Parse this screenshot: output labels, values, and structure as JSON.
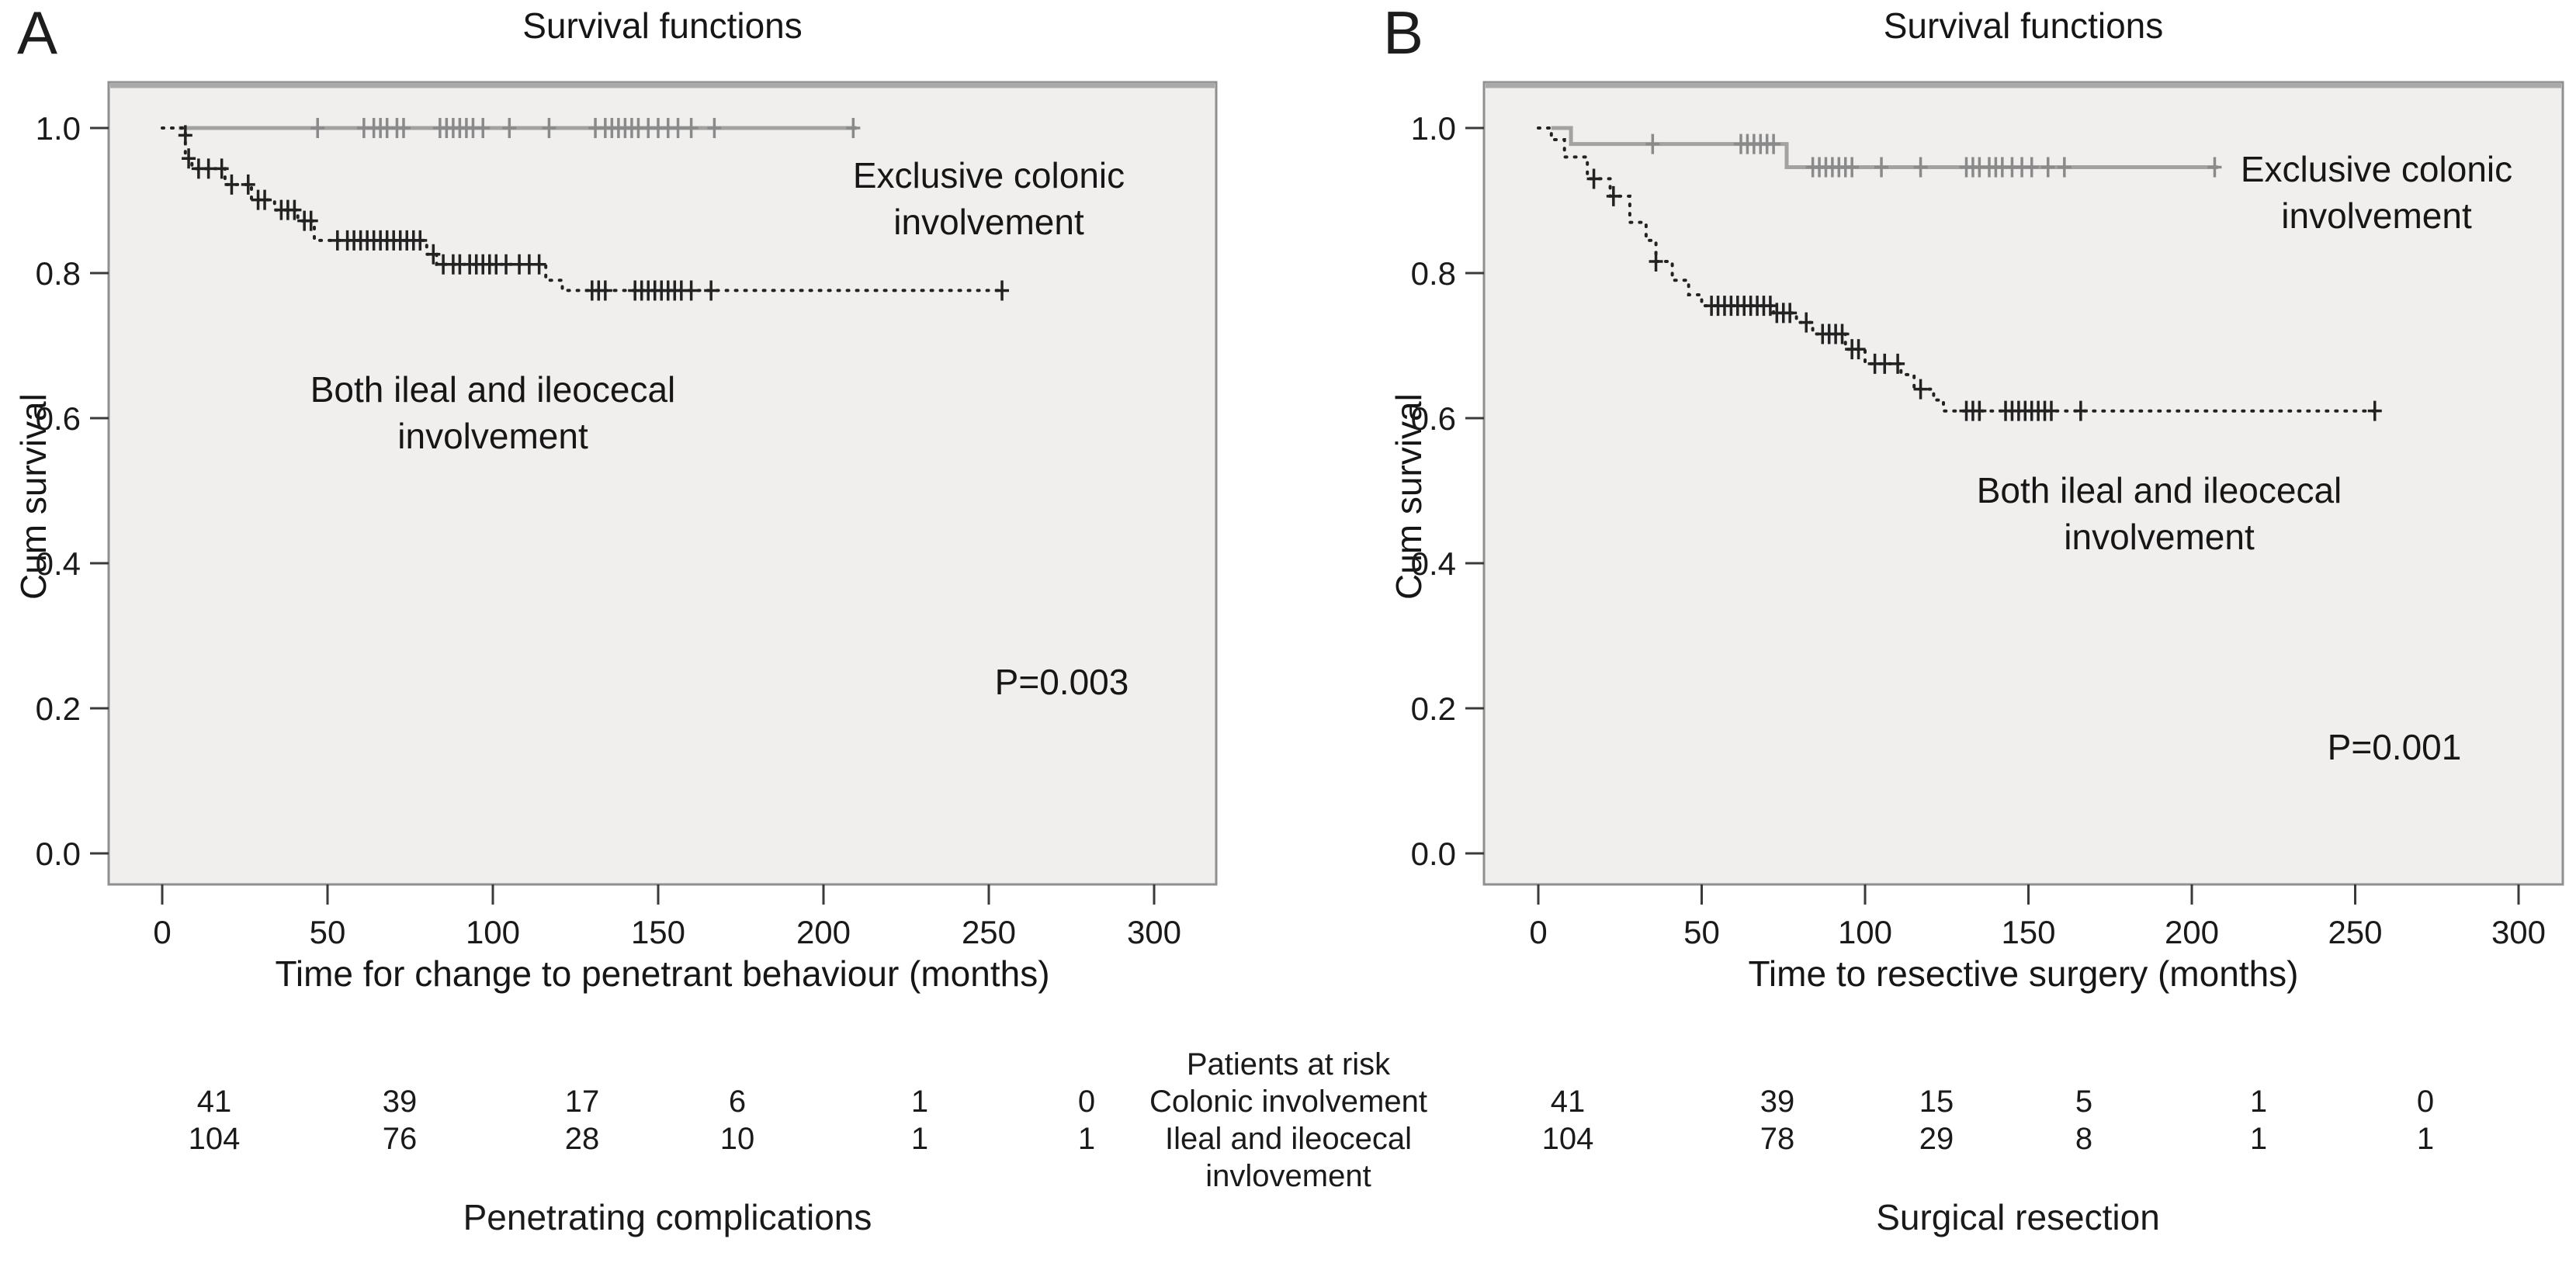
{
  "colors": {
    "colonic": "#a2a2a2",
    "colonic_censor": "#8a8a8a",
    "ileal": "#222222",
    "plot_bg": "#f0efee",
    "plot_border": "#8f8f8f",
    "plot_top_shade": "#a9a9a9",
    "tick": "#3a3a3a",
    "text": "#1a1a1a"
  },
  "risk_block": {
    "header": "Patients at risk",
    "row1_label": "Colonic involvement",
    "row2_label_line1": "Ileal and ileocecal",
    "row2_label_line2": "invlovement"
  },
  "chart_data": [
    {
      "id": "A",
      "panel_letter": "A",
      "type": "line",
      "subtype": "kaplan-meier-step",
      "title": "Survival functions",
      "xlabel": "Time for change to penetrant behaviour (months)",
      "ylabel": "Cum survival",
      "xticks": [
        0,
        50,
        100,
        150,
        200,
        250,
        300
      ],
      "yticks": [
        0.0,
        0.2,
        0.4,
        0.6,
        0.8,
        1.0
      ],
      "xlim": [
        -16,
        320
      ],
      "ylim": [
        -0.06,
        1.06
      ],
      "grid": false,
      "pvalue": "P=0.003",
      "caption": "Penetrating complications",
      "risk_rows": [
        [
          41,
          39,
          17,
          6,
          1,
          0
        ],
        [
          104,
          76,
          28,
          10,
          1,
          1
        ]
      ],
      "series": [
        {
          "name": "Exclusive colonic involvement",
          "label_line1": "Exclusive colonic",
          "label_line2": "involvement",
          "style": "solid",
          "color_key": "colonic",
          "steps": [
            [
              5,
              1.0
            ],
            [
              210,
              1.0
            ]
          ],
          "censors": [
            [
              47,
              1.0
            ],
            [
              61,
              1.0
            ],
            [
              64,
              1.0
            ],
            [
              66,
              1.0
            ],
            [
              68,
              1.0
            ],
            [
              71,
              1.0
            ],
            [
              73,
              1.0
            ],
            [
              84,
              1.0
            ],
            [
              86,
              1.0
            ],
            [
              88,
              1.0
            ],
            [
              90,
              1.0
            ],
            [
              92,
              1.0
            ],
            [
              94,
              1.0
            ],
            [
              97,
              1.0
            ],
            [
              105,
              1.0
            ],
            [
              117,
              1.0
            ],
            [
              131,
              1.0
            ],
            [
              134,
              1.0
            ],
            [
              136,
              1.0
            ],
            [
              138,
              1.0
            ],
            [
              140,
              1.0
            ],
            [
              142,
              1.0
            ],
            [
              144,
              1.0
            ],
            [
              147,
              1.0
            ],
            [
              150,
              1.0
            ],
            [
              153,
              1.0
            ],
            [
              156,
              1.0
            ],
            [
              160,
              1.0
            ],
            [
              167,
              1.0
            ],
            [
              209,
              1.0
            ]
          ]
        },
        {
          "name": "Both ileal and ileocecal involvement",
          "label_line1": "Both ileal and ileocecal",
          "label_line2": "involvement",
          "style": "dashed",
          "color_key": "ileal",
          "steps": [
            [
              0,
              1.0
            ],
            [
              7,
              1.0
            ],
            [
              7,
              0.958
            ],
            [
              9,
              0.944
            ],
            [
              19,
              0.922
            ],
            [
              27,
              0.901
            ],
            [
              34,
              0.887
            ],
            [
              41,
              0.872
            ],
            [
              46,
              0.845
            ],
            [
              80,
              0.826
            ],
            [
              83,
              0.812
            ],
            [
              116,
              0.79
            ],
            [
              121,
              0.776
            ],
            [
              254,
              0.776
            ]
          ],
          "censors": [
            [
              7,
              0.99
            ],
            [
              8,
              0.958
            ],
            [
              11,
              0.944
            ],
            [
              14,
              0.944
            ],
            [
              18,
              0.944
            ],
            [
              21,
              0.922
            ],
            [
              26,
              0.922
            ],
            [
              29,
              0.901
            ],
            [
              31,
              0.901
            ],
            [
              36,
              0.887
            ],
            [
              38,
              0.887
            ],
            [
              40,
              0.887
            ],
            [
              43,
              0.872
            ],
            [
              45,
              0.872
            ],
            [
              53,
              0.845
            ],
            [
              56,
              0.845
            ],
            [
              58,
              0.845
            ],
            [
              60,
              0.845
            ],
            [
              62,
              0.845
            ],
            [
              64,
              0.845
            ],
            [
              66,
              0.845
            ],
            [
              68,
              0.845
            ],
            [
              70,
              0.845
            ],
            [
              72,
              0.845
            ],
            [
              74,
              0.845
            ],
            [
              76,
              0.845
            ],
            [
              78,
              0.845
            ],
            [
              82,
              0.826
            ],
            [
              85,
              0.812
            ],
            [
              88,
              0.812
            ],
            [
              90,
              0.812
            ],
            [
              93,
              0.812
            ],
            [
              95,
              0.812
            ],
            [
              97,
              0.812
            ],
            [
              99,
              0.812
            ],
            [
              101,
              0.812
            ],
            [
              104,
              0.812
            ],
            [
              108,
              0.812
            ],
            [
              111,
              0.812
            ],
            [
              114,
              0.812
            ],
            [
              130,
              0.776
            ],
            [
              132,
              0.776
            ],
            [
              134,
              0.776
            ],
            [
              143,
              0.776
            ],
            [
              145,
              0.776
            ],
            [
              147,
              0.776
            ],
            [
              149,
              0.776
            ],
            [
              151,
              0.776
            ],
            [
              153,
              0.776
            ],
            [
              155,
              0.776
            ],
            [
              157,
              0.776
            ],
            [
              160,
              0.776
            ],
            [
              166,
              0.776
            ],
            [
              254,
              0.776
            ]
          ]
        }
      ]
    },
    {
      "id": "B",
      "panel_letter": "B",
      "type": "line",
      "subtype": "kaplan-meier-step",
      "title": "Survival functions",
      "xlabel": "Time to resective surgery (months)",
      "ylabel": "Cum survival",
      "xticks": [
        0,
        50,
        100,
        150,
        200,
        250,
        300
      ],
      "yticks": [
        0.0,
        0.2,
        0.4,
        0.6,
        0.8,
        1.0
      ],
      "xlim": [
        -16,
        320
      ],
      "ylim": [
        -0.06,
        1.06
      ],
      "grid": false,
      "pvalue": "P=0.001",
      "caption": "Surgical resection",
      "risk_rows": [
        [
          41,
          39,
          15,
          5,
          1,
          0
        ],
        [
          104,
          78,
          29,
          8,
          1,
          1
        ]
      ],
      "series": [
        {
          "name": "Exclusive colonic involvement",
          "label_line1": "Exclusive colonic",
          "label_line2": "involvement",
          "style": "solid",
          "color_key": "colonic",
          "steps": [
            [
              4,
              1.0
            ],
            [
              10,
              1.0
            ],
            [
              10,
              0.978
            ],
            [
              76,
              0.978
            ],
            [
              76,
              0.946
            ],
            [
              208,
              0.946
            ]
          ],
          "censors": [
            [
              35,
              0.978
            ],
            [
              62,
              0.978
            ],
            [
              64,
              0.978
            ],
            [
              66,
              0.978
            ],
            [
              68,
              0.978
            ],
            [
              70,
              0.978
            ],
            [
              72,
              0.978
            ],
            [
              84,
              0.946
            ],
            [
              86,
              0.946
            ],
            [
              88,
              0.946
            ],
            [
              90,
              0.946
            ],
            [
              92,
              0.946
            ],
            [
              94,
              0.946
            ],
            [
              96,
              0.946
            ],
            [
              105,
              0.946
            ],
            [
              117,
              0.946
            ],
            [
              131,
              0.946
            ],
            [
              133,
              0.946
            ],
            [
              135,
              0.946
            ],
            [
              138,
              0.946
            ],
            [
              140,
              0.946
            ],
            [
              142,
              0.946
            ],
            [
              145,
              0.946
            ],
            [
              148,
              0.946
            ],
            [
              151,
              0.946
            ],
            [
              156,
              0.946
            ],
            [
              161,
              0.946
            ],
            [
              207,
              0.946
            ]
          ]
        },
        {
          "name": "Both ileal and ileocecal involvement",
          "label_line1": "Both ileal and ileocecal",
          "label_line2": "involvement",
          "style": "dashed",
          "color_key": "ileal",
          "steps": [
            [
              0,
              1.0
            ],
            [
              4,
              1.0
            ],
            [
              4,
              0.984
            ],
            [
              8,
              0.96
            ],
            [
              15,
              0.93
            ],
            [
              22,
              0.906
            ],
            [
              28,
              0.87
            ],
            [
              33,
              0.845
            ],
            [
              36,
              0.816
            ],
            [
              41,
              0.79
            ],
            [
              46,
              0.77
            ],
            [
              50,
              0.755
            ],
            [
              72,
              0.745
            ],
            [
              79,
              0.732
            ],
            [
              84,
              0.716
            ],
            [
              94,
              0.695
            ],
            [
              100,
              0.675
            ],
            [
              111,
              0.66
            ],
            [
              115,
              0.64
            ],
            [
              121,
              0.625
            ],
            [
              124,
              0.61
            ],
            [
              256,
              0.61
            ]
          ],
          "censors": [
            [
              17,
              0.93
            ],
            [
              23,
              0.906
            ],
            [
              36,
              0.816
            ],
            [
              53,
              0.755
            ],
            [
              55,
              0.755
            ],
            [
              57,
              0.755
            ],
            [
              59,
              0.755
            ],
            [
              61,
              0.755
            ],
            [
              63,
              0.755
            ],
            [
              65,
              0.755
            ],
            [
              67,
              0.755
            ],
            [
              69,
              0.755
            ],
            [
              71,
              0.755
            ],
            [
              73,
              0.745
            ],
            [
              75,
              0.745
            ],
            [
              77,
              0.745
            ],
            [
              82,
              0.732
            ],
            [
              87,
              0.716
            ],
            [
              89,
              0.716
            ],
            [
              91,
              0.716
            ],
            [
              93,
              0.716
            ],
            [
              96,
              0.695
            ],
            [
              98,
              0.695
            ],
            [
              103,
              0.675
            ],
            [
              106,
              0.675
            ],
            [
              110,
              0.675
            ],
            [
              117,
              0.64
            ],
            [
              131,
              0.61
            ],
            [
              133,
              0.61
            ],
            [
              135,
              0.61
            ],
            [
              143,
              0.61
            ],
            [
              145,
              0.61
            ],
            [
              147,
              0.61
            ],
            [
              149,
              0.61
            ],
            [
              151,
              0.61
            ],
            [
              153,
              0.61
            ],
            [
              155,
              0.61
            ],
            [
              157,
              0.61
            ],
            [
              166,
              0.61
            ],
            [
              256,
              0.61
            ]
          ]
        }
      ]
    }
  ]
}
